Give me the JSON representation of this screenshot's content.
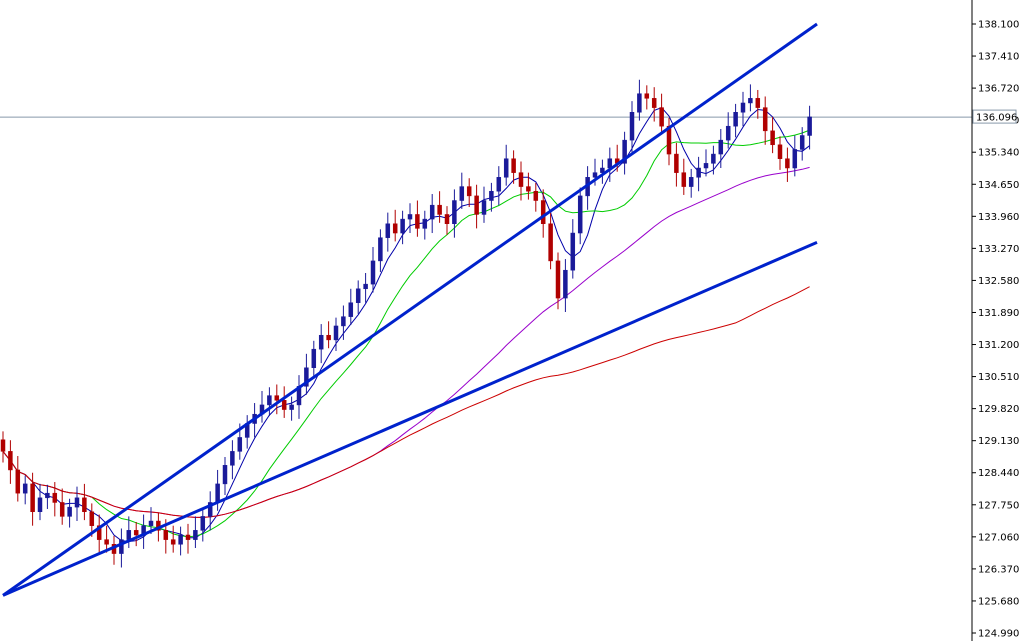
{
  "chart_data": {
    "type": "candlestick",
    "ylim": [
      124.99,
      138.1
    ],
    "y_ticks": [
      "138.100",
      "137.410",
      "136.720",
      "136.030",
      "135.340",
      "134.650",
      "133.960",
      "133.270",
      "132.580",
      "131.890",
      "131.200",
      "130.510",
      "129.820",
      "129.130",
      "128.440",
      "127.750",
      "127.060",
      "126.370",
      "125.680",
      "124.990"
    ],
    "current_price": "136.096",
    "grid": false,
    "colors": {
      "up_candle": "#1a1a99",
      "down_candle": "#b00000",
      "ma_fast": "#0000aa",
      "ma_mid": "#00cc00",
      "ma_slow": "#9900cc",
      "ma_long": "#cc0000",
      "trendline": "#0022cc",
      "price_line": "#8899aa"
    },
    "closes": [
      128.9,
      128.5,
      128.0,
      128.2,
      127.6,
      127.9,
      128.0,
      127.8,
      127.5,
      127.7,
      127.9,
      127.6,
      127.3,
      127.0,
      126.9,
      126.7,
      127.0,
      127.2,
      127.1,
      127.3,
      127.4,
      127.2,
      127.0,
      126.9,
      127.1,
      127.0,
      127.2,
      127.5,
      127.8,
      128.2,
      128.6,
      128.9,
      129.2,
      129.5,
      129.7,
      129.9,
      130.1,
      130.0,
      129.8,
      129.9,
      130.3,
      130.7,
      131.1,
      131.4,
      131.3,
      131.6,
      131.8,
      132.1,
      132.4,
      132.5,
      133.0,
      133.5,
      133.8,
      133.6,
      133.9,
      134.0,
      133.7,
      133.9,
      134.2,
      134.0,
      133.8,
      134.3,
      134.6,
      134.4,
      134.0,
      134.3,
      134.5,
      134.8,
      135.2,
      134.9,
      134.6,
      134.5,
      134.3,
      133.8,
      133.0,
      132.2,
      132.8,
      133.6,
      134.4,
      134.8,
      134.9,
      135.0,
      135.2,
      135.1,
      135.6,
      136.2,
      136.6,
      136.5,
      136.3,
      135.9,
      135.3,
      134.9,
      134.6,
      134.8,
      135.0,
      135.1,
      135.3,
      135.6,
      135.9,
      136.2,
      136.4,
      136.5,
      136.3,
      135.8,
      135.5,
      135.2,
      135.0,
      135.4,
      135.7,
      136.1
    ],
    "moving_averages": [
      {
        "key": "ma_fast",
        "period": 5
      },
      {
        "key": "ma_mid",
        "period": 13
      },
      {
        "key": "ma_slow",
        "period": 50
      },
      {
        "key": "ma_long",
        "period": 100
      }
    ],
    "trendlines": [
      {
        "from": [
          0,
          125.8
        ],
        "to": [
          110,
          138.1
        ]
      },
      {
        "from": [
          0,
          125.8
        ],
        "to": [
          110,
          133.4
        ]
      }
    ]
  }
}
